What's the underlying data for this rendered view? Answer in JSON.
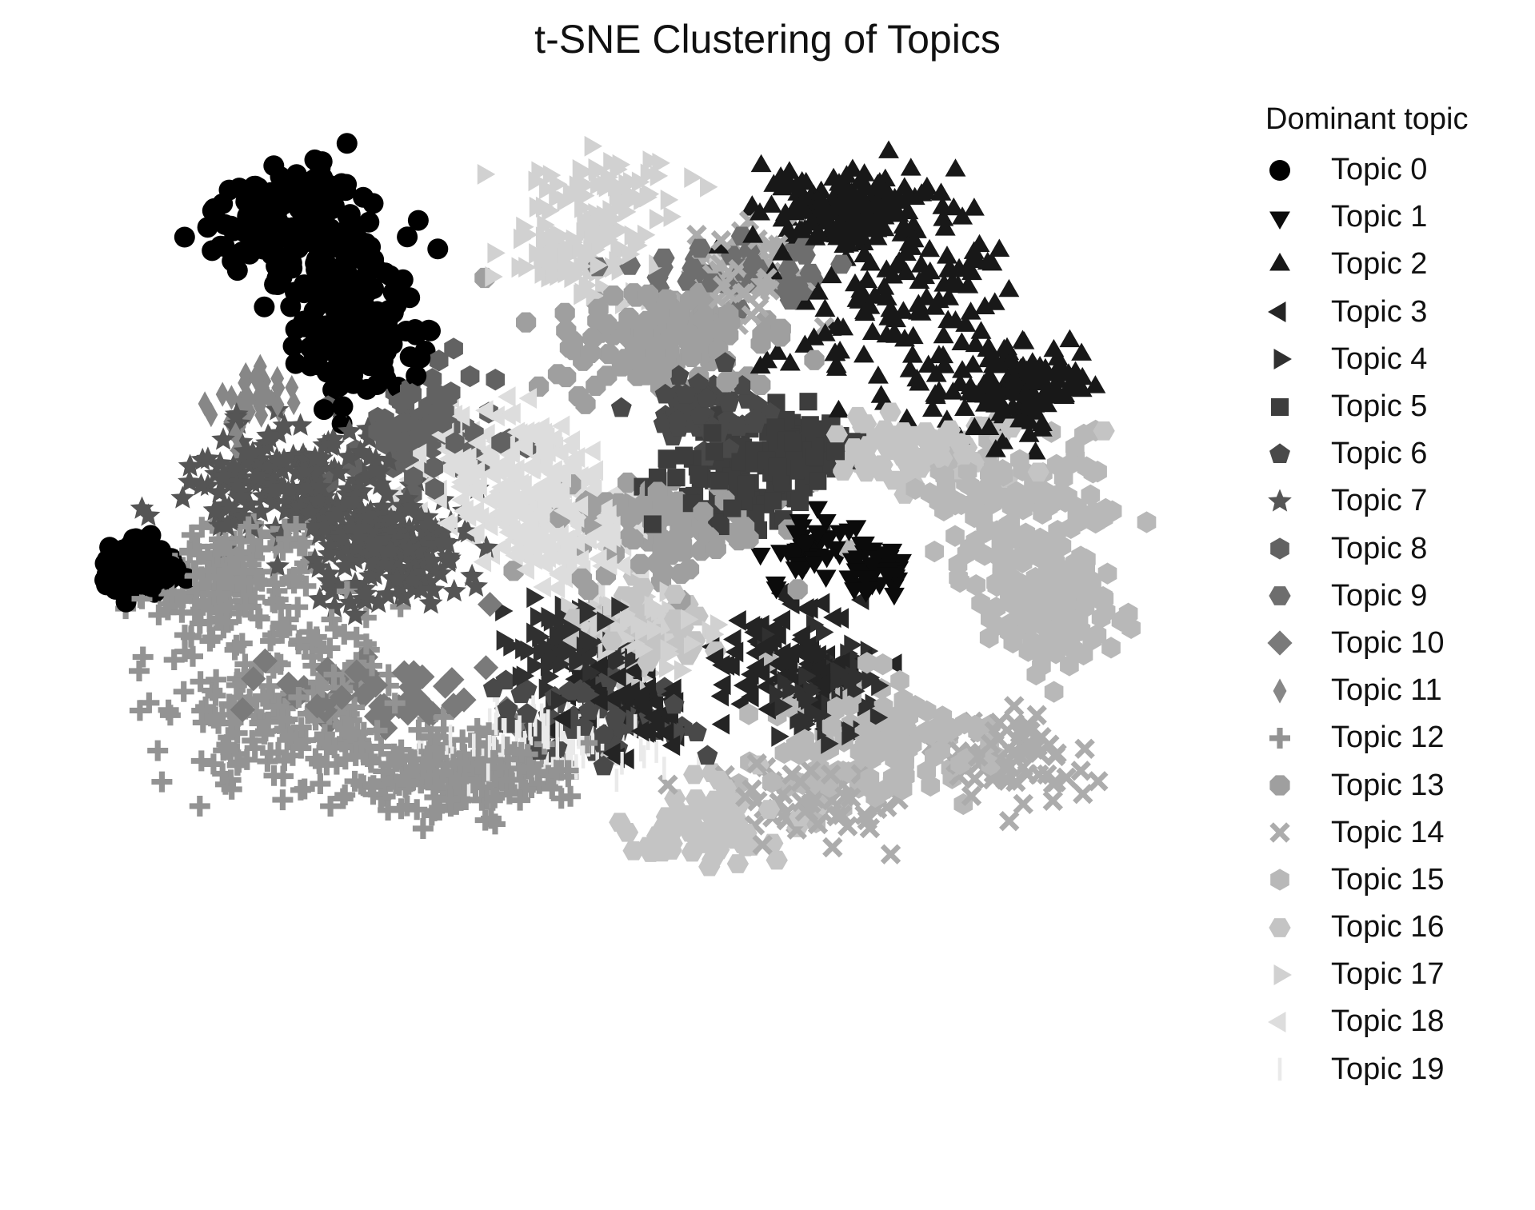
{
  "chart_data": {
    "type": "scatter",
    "title": "t-SNE Clustering of Topics",
    "legend_title": "Dominant topic",
    "legend_position": "right",
    "grid": false,
    "axes_visible": false,
    "xlim": [
      -80,
      80
    ],
    "ylim": [
      -62,
      62
    ],
    "series": [
      {
        "name": "Topic 0",
        "marker": "circle",
        "color": "#000000"
      },
      {
        "name": "Topic 1",
        "marker": "triangle-down",
        "color": "#0b0b0b"
      },
      {
        "name": "Topic 2",
        "marker": "triangle-up",
        "color": "#181818"
      },
      {
        "name": "Topic 3",
        "marker": "triangle-left",
        "color": "#242424"
      },
      {
        "name": "Topic 4",
        "marker": "triangle-right",
        "color": "#303030"
      },
      {
        "name": "Topic 5",
        "marker": "square",
        "color": "#3d3d3d"
      },
      {
        "name": "Topic 6",
        "marker": "pentagon",
        "color": "#494949"
      },
      {
        "name": "Topic 7",
        "marker": "star",
        "color": "#555555"
      },
      {
        "name": "Topic 8",
        "marker": "hexagon",
        "color": "#626262"
      },
      {
        "name": "Topic 9",
        "marker": "hexagon-alt",
        "color": "#6e6e6e"
      },
      {
        "name": "Topic 10",
        "marker": "diamond",
        "color": "#7a7a7a"
      },
      {
        "name": "Topic 11",
        "marker": "thin-diamond",
        "color": "#878787"
      },
      {
        "name": "Topic 12",
        "marker": "plus",
        "color": "#939393"
      },
      {
        "name": "Topic 13",
        "marker": "octagon",
        "color": "#9f9f9f"
      },
      {
        "name": "Topic 14",
        "marker": "x",
        "color": "#acacac"
      },
      {
        "name": "Topic 15",
        "marker": "hexagon",
        "color": "#b8b8b8"
      },
      {
        "name": "Topic 16",
        "marker": "hexagon-alt",
        "color": "#c4c4c4"
      },
      {
        "name": "Topic 17",
        "marker": "triangle-right",
        "color": "#d1d1d1"
      },
      {
        "name": "Topic 18",
        "marker": "triangle-left",
        "color": "#dddddd"
      },
      {
        "name": "Topic 19",
        "marker": "vline",
        "color": "#eaeaea"
      }
    ],
    "clusters": [
      {
        "topic": 0,
        "n": 500,
        "parts": [
          [
            -48,
            45,
            12,
            10
          ],
          [
            -40,
            30,
            8,
            10
          ],
          [
            -70,
            -8,
            4,
            3
          ]
        ]
      },
      {
        "topic": 1,
        "n": 80,
        "parts": [
          [
            25,
            -5,
            6,
            6
          ],
          [
            35,
            -8,
            4,
            4
          ]
        ]
      },
      {
        "topic": 2,
        "n": 420,
        "parts": [
          [
            38,
            35,
            14,
            14
          ],
          [
            55,
            20,
            9,
            7
          ],
          [
            30,
            48,
            10,
            5
          ]
        ]
      },
      {
        "topic": 3,
        "n": 180,
        "parts": [
          [
            22,
            -22,
            10,
            8
          ],
          [
            0,
            -30,
            8,
            6
          ]
        ]
      },
      {
        "topic": 4,
        "n": 160,
        "parts": [
          [
            -8,
            -20,
            8,
            6
          ],
          [
            28,
            -28,
            8,
            8
          ]
        ]
      },
      {
        "topic": 5,
        "n": 220,
        "parts": [
          [
            14,
            5,
            10,
            7
          ],
          [
            24,
            10,
            6,
            4
          ]
        ]
      },
      {
        "topic": 6,
        "n": 130,
        "parts": [
          [
            -5,
            -32,
            12,
            6
          ],
          [
            12,
            16,
            8,
            6
          ]
        ]
      },
      {
        "topic": 7,
        "n": 360,
        "parts": [
          [
            -48,
            5,
            14,
            8
          ],
          [
            -35,
            -5,
            10,
            8
          ]
        ]
      },
      {
        "topic": 8,
        "n": 80,
        "parts": [
          [
            -30,
            14,
            10,
            8
          ]
        ]
      },
      {
        "topic": 9,
        "n": 50,
        "parts": [
          [
            15,
            38,
            12,
            5
          ]
        ]
      },
      {
        "topic": 10,
        "n": 50,
        "parts": [
          [
            -35,
            -28,
            14,
            6
          ]
        ]
      },
      {
        "topic": 11,
        "n": 40,
        "parts": [
          [
            -55,
            18,
            6,
            5
          ]
        ]
      },
      {
        "topic": 12,
        "n": 560,
        "parts": [
          [
            -50,
            -30,
            16,
            12
          ],
          [
            -58,
            -10,
            12,
            8
          ],
          [
            -25,
            -40,
            14,
            6
          ]
        ]
      },
      {
        "topic": 13,
        "n": 220,
        "parts": [
          [
            5,
            28,
            14,
            8
          ],
          [
            5,
            -2,
            12,
            8
          ]
        ]
      },
      {
        "topic": 14,
        "n": 180,
        "parts": [
          [
            15,
            38,
            10,
            6
          ],
          [
            25,
            -45,
            12,
            6
          ],
          [
            55,
            -38,
            10,
            6
          ]
        ]
      },
      {
        "topic": 15,
        "n": 400,
        "parts": [
          [
            55,
            0,
            14,
            10
          ],
          [
            35,
            -35,
            14,
            10
          ],
          [
            60,
            -15,
            8,
            8
          ]
        ]
      },
      {
        "topic": 16,
        "n": 240,
        "parts": [
          [
            42,
            10,
            14,
            5
          ],
          [
            10,
            -48,
            10,
            6
          ],
          [
            2,
            -18,
            8,
            6
          ]
        ]
      },
      {
        "topic": 17,
        "n": 240,
        "parts": [
          [
            -5,
            50,
            12,
            6
          ],
          [
            -8,
            40,
            8,
            5
          ],
          [
            0,
            -18,
            8,
            5
          ]
        ]
      },
      {
        "topic": 18,
        "n": 330,
        "parts": [
          [
            -20,
            8,
            12,
            8
          ],
          [
            -10,
            -2,
            10,
            8
          ]
        ]
      },
      {
        "topic": 19,
        "n": 110,
        "parts": [
          [
            -12,
            -36,
            14,
            6
          ]
        ]
      }
    ]
  },
  "legend": {
    "title": "Dominant topic",
    "items": [
      "Topic 0",
      "Topic 1",
      "Topic 2",
      "Topic 3",
      "Topic 4",
      "Topic 5",
      "Topic 6",
      "Topic 7",
      "Topic 8",
      "Topic 9",
      "Topic 10",
      "Topic 11",
      "Topic 12",
      "Topic 13",
      "Topic 14",
      "Topic 15",
      "Topic 16",
      "Topic 17",
      "Topic 18",
      "Topic 19"
    ]
  }
}
